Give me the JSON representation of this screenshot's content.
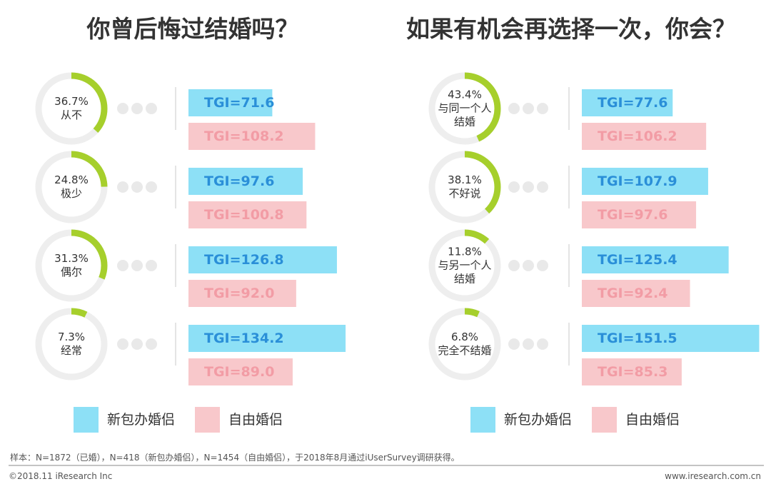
{
  "chart_data": [
    {
      "type": "bar",
      "title": "你曾后悔过结婚吗？",
      "categories": [
        "从不",
        "极少",
        "偶尔",
        "经常"
      ],
      "shares": {
        "color": "#a6cf2c",
        "values": [
          36.7,
          24.8,
          31.3,
          7.3
        ],
        "value_labels": [
          "36.7%",
          "24.8%",
          "31.3%",
          "7.3%"
        ]
      },
      "series": [
        {
          "name": "新包办婚侣",
          "color": "#8de0f6",
          "values": [
            71.6,
            97.6,
            126.8,
            134.2
          ],
          "value_labels": [
            "TGI=71.6",
            "TGI=97.6",
            "TGI=126.8",
            "TGI=134.2"
          ]
        },
        {
          "name": "自由婚侣",
          "color": "#f8c8cb",
          "values": [
            108.2,
            100.8,
            92.0,
            89.0
          ],
          "value_labels": [
            "TGI=108.2",
            "TGI=100.8",
            "TGI=92.0",
            "TGI=89.0"
          ]
        }
      ]
    },
    {
      "type": "bar",
      "title": "如果有机会再选择一次，你会？",
      "categories": [
        "与同一个人结婚",
        "不好说",
        "与另一个人结婚",
        "完全不结婚"
      ],
      "shares": {
        "color": "#a6cf2c",
        "values": [
          43.4,
          38.1,
          11.8,
          6.8
        ],
        "value_labels": [
          "43.4%",
          "38.1%",
          "11.8%",
          "6.8%"
        ]
      },
      "series": [
        {
          "name": "新包办婚侣",
          "color": "#8de0f6",
          "values": [
            77.6,
            107.9,
            125.4,
            151.5
          ],
          "value_labels": [
            "TGI=77.6",
            "TGI=107.9",
            "TGI=125.4",
            "TGI=151.5"
          ]
        },
        {
          "name": "自由婚侣",
          "color": "#f8c8cb",
          "values": [
            106.2,
            97.6,
            92.4,
            85.3
          ],
          "value_labels": [
            "TGI=106.2",
            "TGI=97.6",
            "TGI=92.4",
            "TGI=85.3"
          ]
        }
      ]
    }
  ],
  "footnote": "样本：N=1872（已婚），N=418（新包办婚侣），N=1454（自由婚侣），于2018年8月通过iUserSurvey调研获得。",
  "copyright": "©2018.11 iResearch Inc",
  "website": "www.iresearch.com.cn"
}
